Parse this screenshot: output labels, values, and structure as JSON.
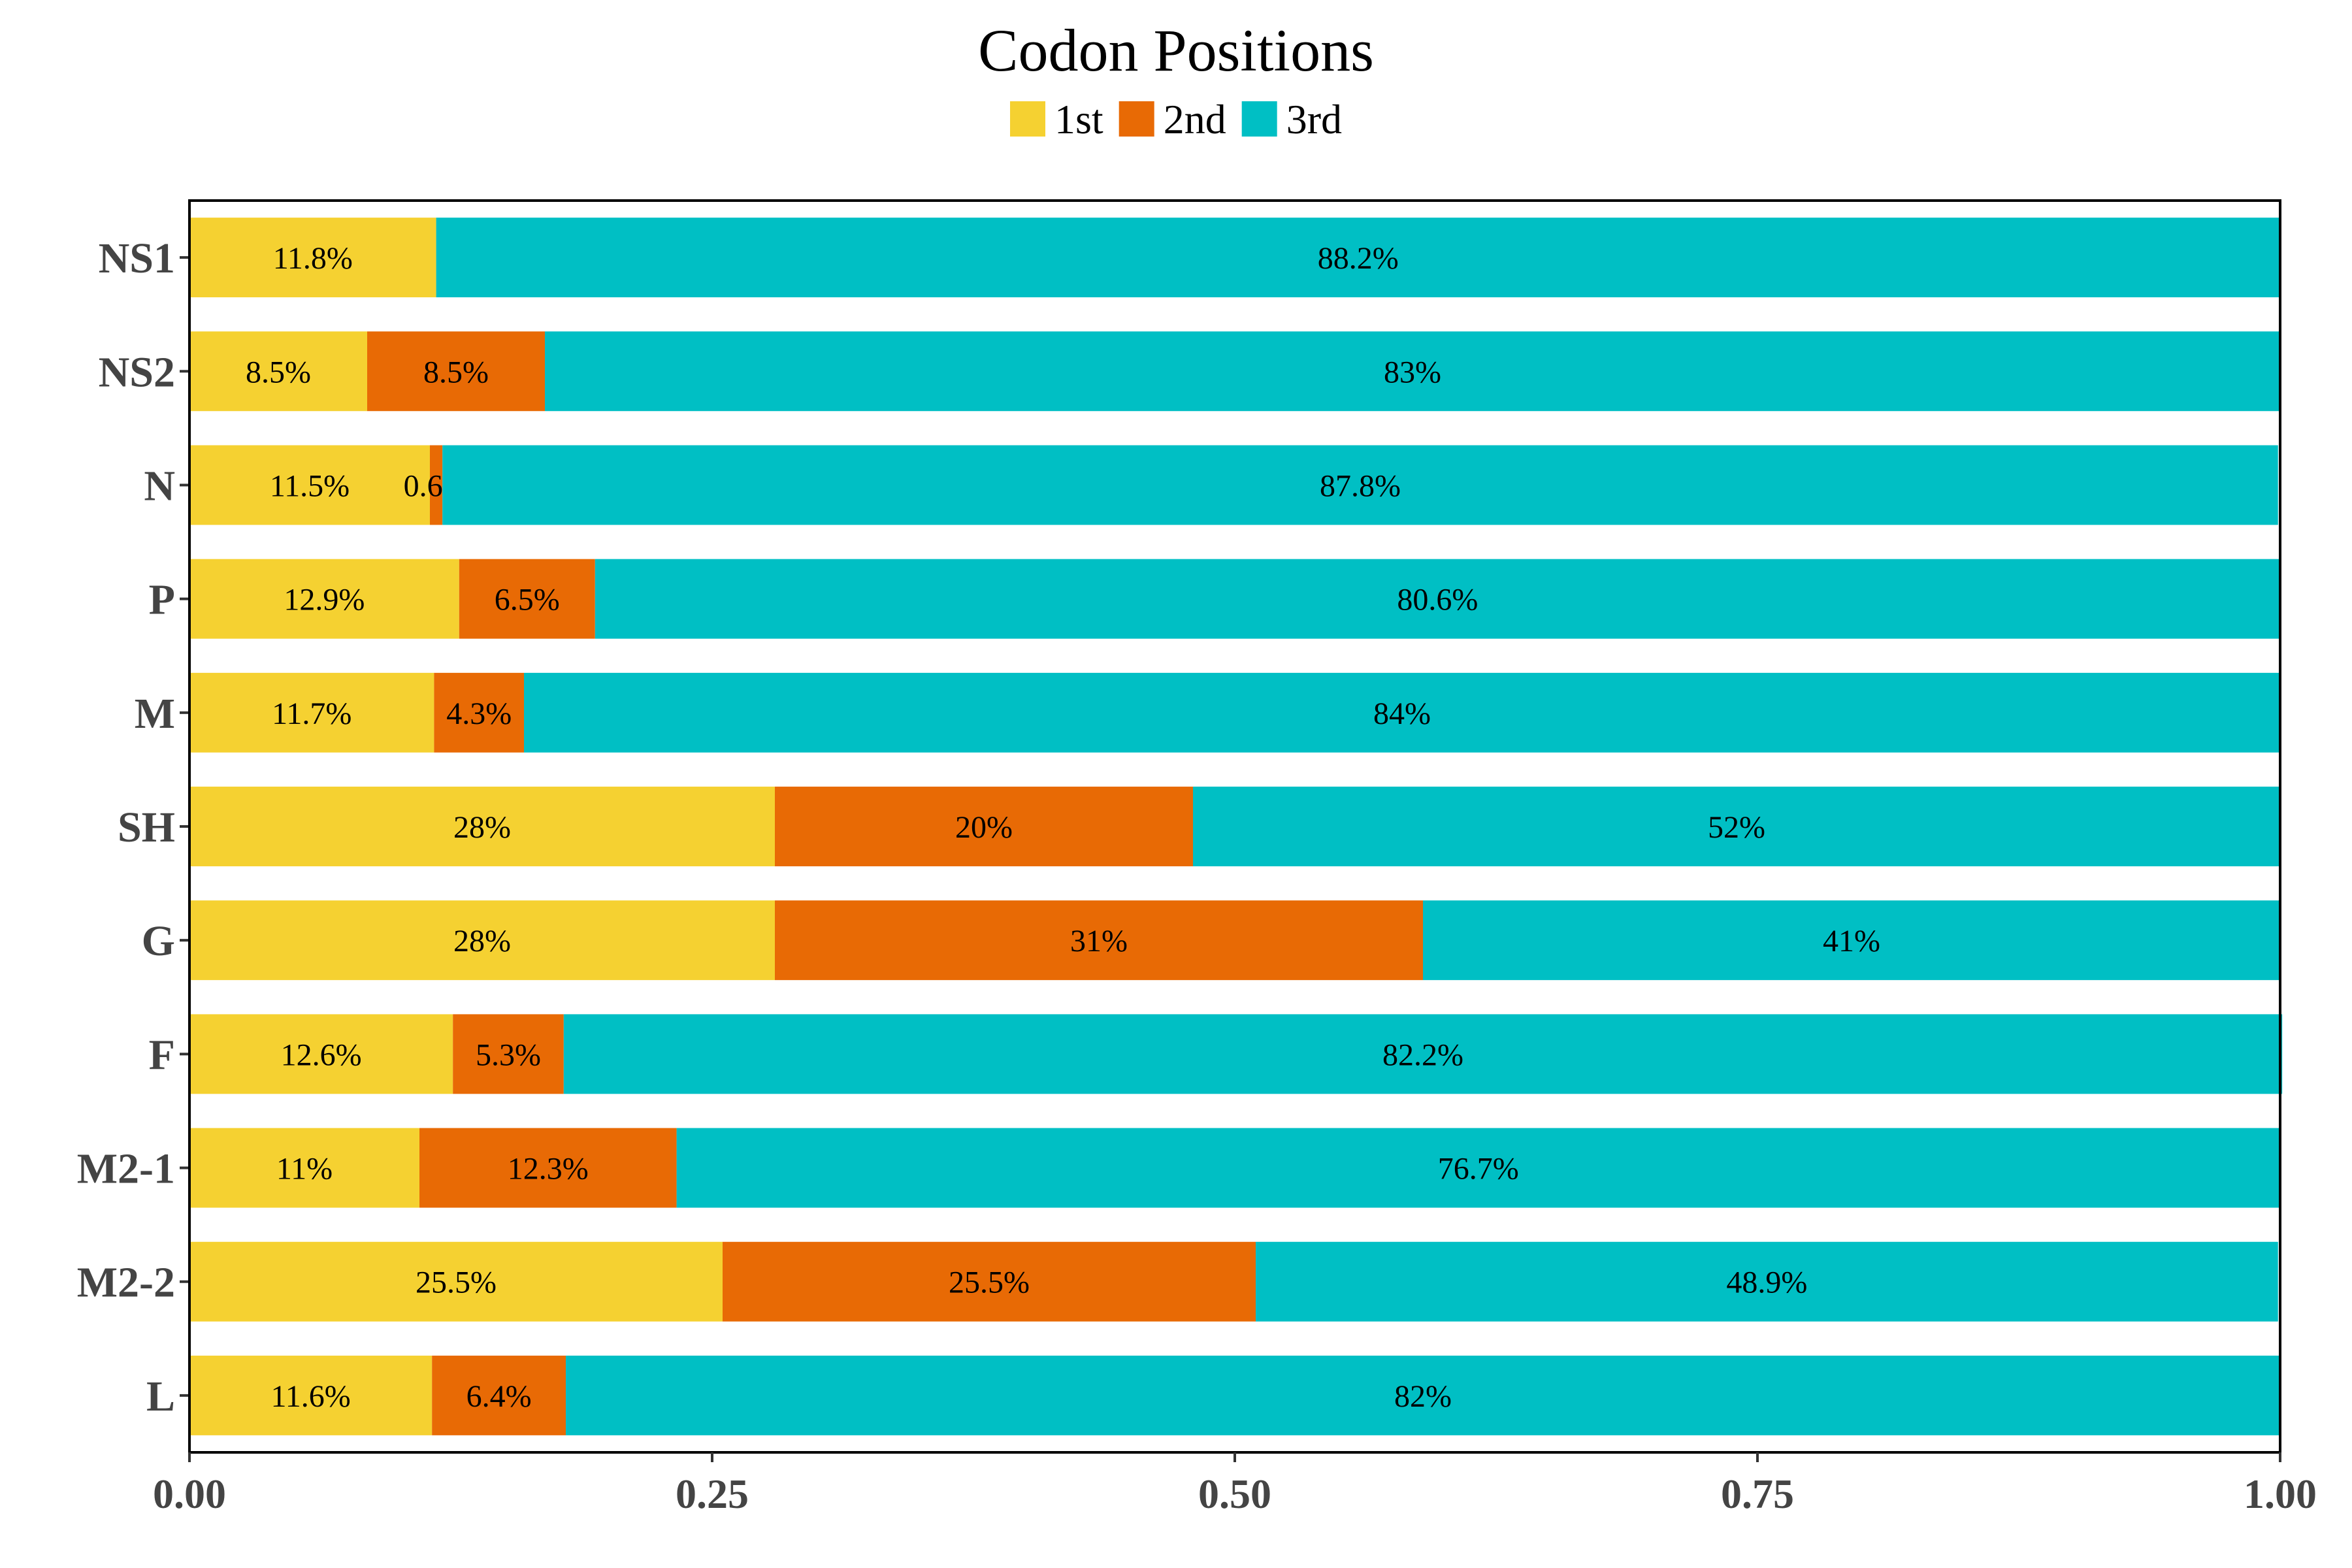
{
  "chart_data": {
    "type": "bar",
    "orientation": "horizontal",
    "stacked": true,
    "title": "Codon Positions",
    "xlabel": "",
    "ylabel": "",
    "xlim": [
      0,
      1
    ],
    "x_ticks": [
      "0.00",
      "0.25",
      "0.50",
      "0.75",
      "1.00"
    ],
    "x_tick_values": [
      0,
      0.25,
      0.5,
      0.75,
      1.0
    ],
    "legend_position": "top",
    "grid": false,
    "categories": [
      "NS1",
      "NS2",
      "N",
      "P",
      "M",
      "SH",
      "G",
      "F",
      "M2-1",
      "M2-2",
      "L"
    ],
    "series": [
      {
        "name": "1st",
        "color": "#F5D131",
        "values": [
          0.118,
          0.085,
          0.115,
          0.129,
          0.117,
          0.28,
          0.28,
          0.126,
          0.11,
          0.255,
          0.116
        ],
        "labels": [
          "11.8%",
          "8.5%",
          "11.5%",
          "12.9%",
          "11.7%",
          "28%",
          "28%",
          "12.6%",
          "11%",
          "25.5%",
          "11.6%"
        ]
      },
      {
        "name": "2nd",
        "color": "#E86A05",
        "values": [
          0,
          0.085,
          0.006,
          0.065,
          0.043,
          0.2,
          0.31,
          0.053,
          0.123,
          0.255,
          0.064
        ],
        "labels": [
          "",
          "8.5%",
          "0.6%",
          "6.5%",
          "4.3%",
          "20%",
          "31%",
          "5.3%",
          "12.3%",
          "25.5%",
          "6.4%"
        ]
      },
      {
        "name": "3rd",
        "color": "#00BFC4",
        "values": [
          0.882,
          0.83,
          0.878,
          0.806,
          0.84,
          0.52,
          0.41,
          0.822,
          0.767,
          0.489,
          0.82
        ],
        "labels": [
          "88.2%",
          "83%",
          "87.8%",
          "80.6%",
          "84%",
          "52%",
          "41%",
          "82.2%",
          "76.7%",
          "48.9%",
          "82%"
        ]
      }
    ]
  }
}
